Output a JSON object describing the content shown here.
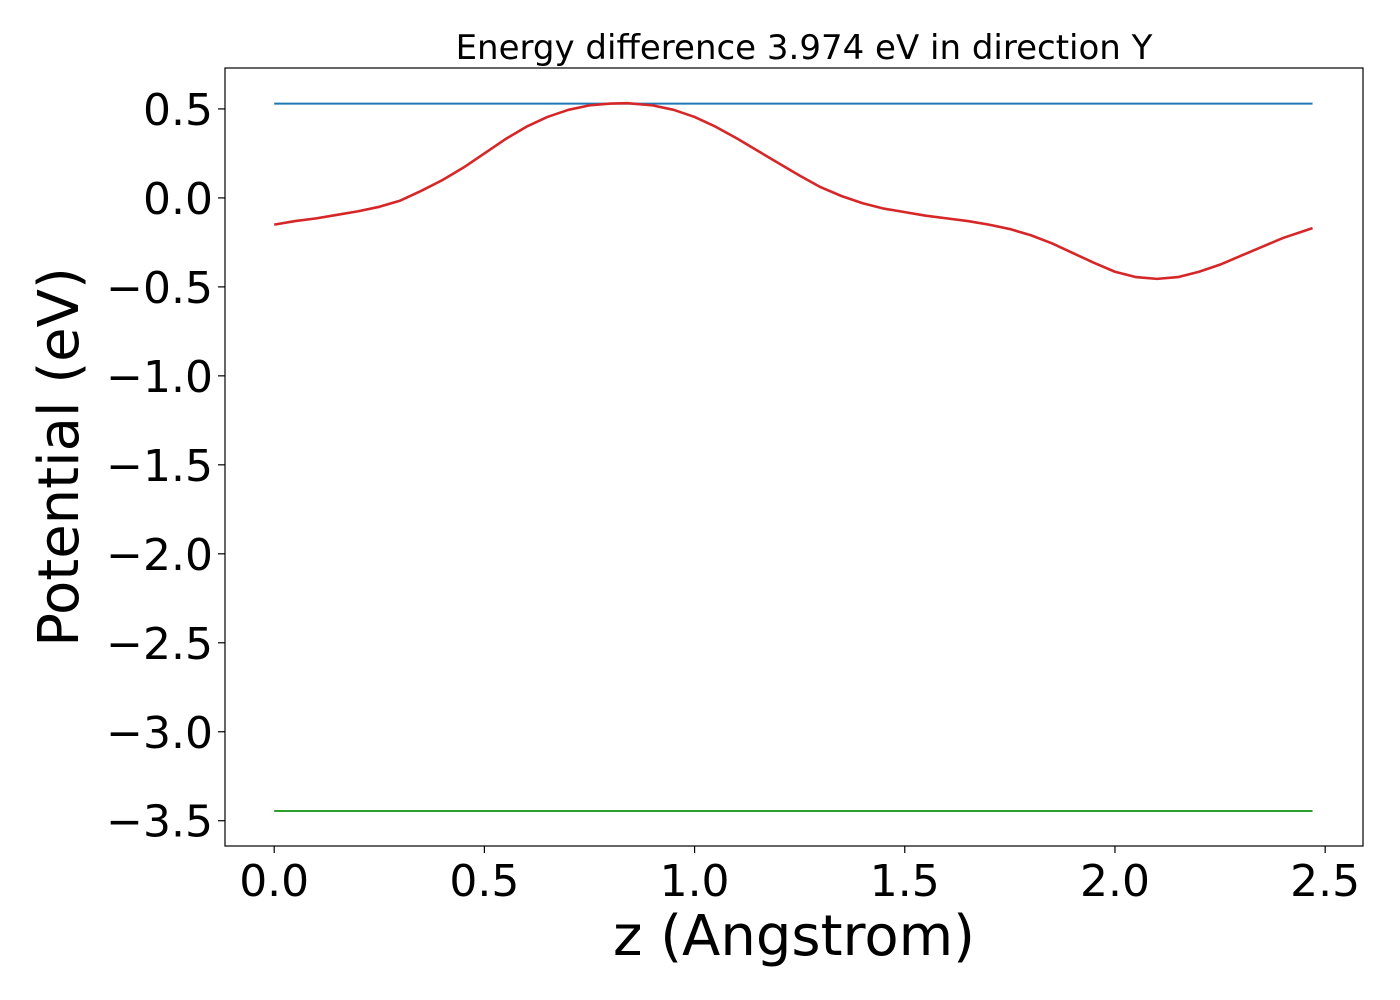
{
  "chart_data": {
    "type": "line",
    "title": "Energy difference 3.974 eV in direction Y",
    "xlabel": "z (Angstrom)",
    "ylabel": "Potential (eV)",
    "xlim": [
      -0.117,
      2.59
    ],
    "ylim": [
      -3.642,
      0.73
    ],
    "xticks": [
      0.0,
      0.5,
      1.0,
      1.5,
      2.0,
      2.5
    ],
    "xtick_labels": [
      "0.0",
      "0.5",
      "1.0",
      "1.5",
      "2.0",
      "2.5"
    ],
    "yticks": [
      0.5,
      0.0,
      -0.5,
      -1.0,
      -1.5,
      -2.0,
      -2.5,
      -3.0,
      -3.5
    ],
    "ytick_labels": [
      "0.5",
      "0.0",
      "−0.5",
      "−1.0",
      "−1.5",
      "−2.0",
      "−2.5",
      "−3.0",
      "−3.5"
    ],
    "grid": false,
    "series": [
      {
        "color": "#1f77b4",
        "x": [
          0.0,
          2.47
        ],
        "y": [
          0.53,
          0.53
        ]
      },
      {
        "color": "#d62728",
        "x": [
          0.0,
          0.05,
          0.1,
          0.15,
          0.2,
          0.25,
          0.3,
          0.35,
          0.4,
          0.45,
          0.5,
          0.55,
          0.6,
          0.65,
          0.7,
          0.75,
          0.8,
          0.84,
          0.9,
          0.95,
          1.0,
          1.05,
          1.1,
          1.15,
          1.2,
          1.25,
          1.3,
          1.35,
          1.4,
          1.45,
          1.5,
          1.55,
          1.6,
          1.65,
          1.7,
          1.75,
          1.8,
          1.85,
          1.9,
          1.95,
          2.0,
          2.05,
          2.1,
          2.15,
          2.2,
          2.25,
          2.3,
          2.35,
          2.4,
          2.47
        ],
        "y": [
          -0.15,
          -0.13,
          -0.115,
          -0.095,
          -0.075,
          -0.05,
          -0.015,
          0.04,
          0.1,
          0.17,
          0.25,
          0.33,
          0.4,
          0.455,
          0.495,
          0.52,
          0.53,
          0.532,
          0.52,
          0.495,
          0.455,
          0.4,
          0.335,
          0.265,
          0.195,
          0.125,
          0.06,
          0.01,
          -0.03,
          -0.06,
          -0.08,
          -0.1,
          -0.115,
          -0.13,
          -0.15,
          -0.175,
          -0.21,
          -0.255,
          -0.31,
          -0.365,
          -0.415,
          -0.445,
          -0.455,
          -0.445,
          -0.415,
          -0.375,
          -0.325,
          -0.275,
          -0.225,
          -0.17
        ]
      },
      {
        "color": "#2ca02c",
        "x": [
          0.0,
          2.47
        ],
        "y": [
          -3.445,
          -3.445
        ]
      }
    ]
  }
}
